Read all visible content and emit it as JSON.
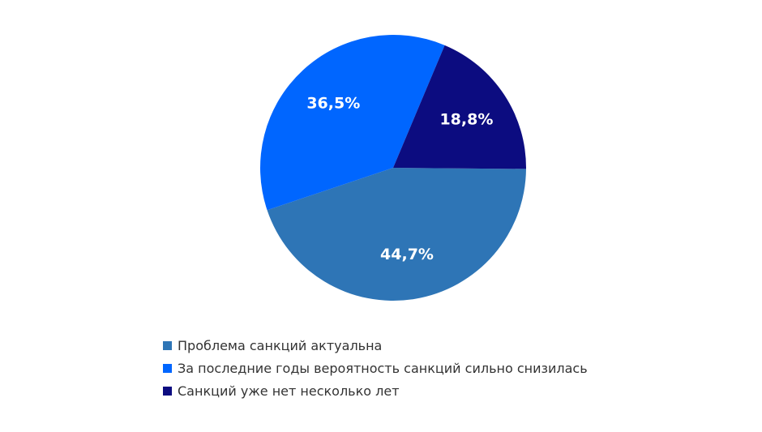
{
  "chart_data": {
    "type": "pie",
    "categories": [
      "Проблема санкций актуальна",
      "За последние годы вероятность санкций сильно снизилась",
      "Санкций уже нет несколько лет"
    ],
    "values": [
      44.7,
      36.5,
      18.8
    ],
    "value_labels": [
      "44,7%",
      "36,5%",
      "18,8%"
    ],
    "colors": [
      "#2e75b6",
      "#0066ff",
      "#0c0c80"
    ],
    "legend_position": "bottom-left",
    "title": ""
  }
}
